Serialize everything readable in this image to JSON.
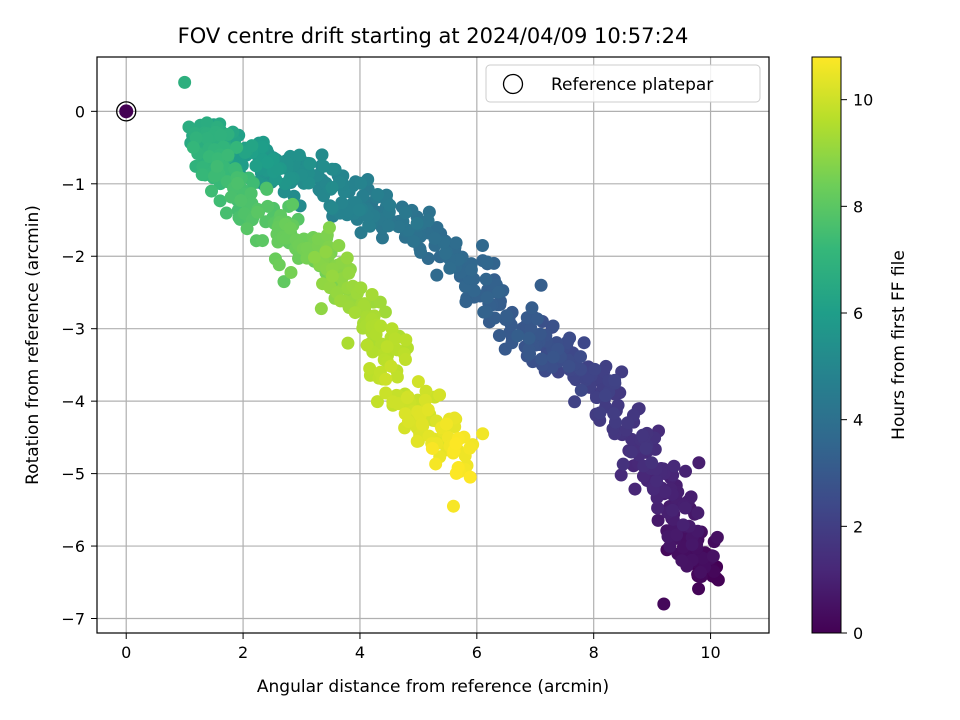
{
  "chart_data": {
    "type": "scatter",
    "title": "FOV centre drift starting at 2024/04/09 10:57:24",
    "xlabel": "Angular distance from reference (arcmin)",
    "ylabel": "Rotation from reference (arcmin)",
    "xlim": [
      -0.5,
      11.0
    ],
    "ylim": [
      -7.2,
      0.75
    ],
    "xticks": [
      0,
      2,
      4,
      6,
      8,
      10
    ],
    "yticks": [
      0,
      -1,
      -2,
      -3,
      -4,
      -5,
      -6,
      -7
    ],
    "grid": true,
    "colormap": "viridis",
    "colorbar": {
      "label": "Hours from first FF file",
      "range": [
        0,
        10.8
      ],
      "ticks": [
        0,
        2,
        4,
        6,
        8,
        10
      ]
    },
    "legend": {
      "placement": "upper-right",
      "entries": [
        {
          "label": "Reference platepar",
          "marker": "open-circle"
        }
      ]
    },
    "reference_point": {
      "x": 0,
      "y": 0,
      "hours": 0
    },
    "trajectory_keypoints": [
      {
        "hours": 0.0,
        "x": 9.9,
        "y": -6.4
      },
      {
        "hours": 0.6,
        "x": 9.6,
        "y": -5.9
      },
      {
        "hours": 1.2,
        "x": 9.1,
        "y": -5.0
      },
      {
        "hours": 1.8,
        "x": 8.5,
        "y": -4.2
      },
      {
        "hours": 2.4,
        "x": 7.6,
        "y": -3.4
      },
      {
        "hours": 3.0,
        "x": 6.8,
        "y": -3.1
      },
      {
        "hours": 3.5,
        "x": 5.9,
        "y": -2.3
      },
      {
        "hours": 4.0,
        "x": 5.0,
        "y": -1.7
      },
      {
        "hours": 4.6,
        "x": 4.1,
        "y": -1.3
      },
      {
        "hours": 5.2,
        "x": 3.1,
        "y": -0.9
      },
      {
        "hours": 6.0,
        "x": 2.0,
        "y": -0.6
      },
      {
        "hours": 6.6,
        "x": 1.4,
        "y": -0.3
      },
      {
        "hours": 7.1,
        "x": 1.5,
        "y": -0.7
      },
      {
        "hours": 7.6,
        "x": 2.0,
        "y": -1.2
      },
      {
        "hours": 8.2,
        "x": 2.8,
        "y": -1.7
      },
      {
        "hours": 8.8,
        "x": 3.5,
        "y": -2.1
      },
      {
        "hours": 9.4,
        "x": 4.2,
        "y": -2.9
      },
      {
        "hours": 10.0,
        "x": 4.9,
        "y": -4.0
      },
      {
        "hours": 10.8,
        "x": 5.8,
        "y": -4.8
      }
    ],
    "notable_points": [
      {
        "x": 1.0,
        "y": 0.4,
        "hours": 6.8
      },
      {
        "x": 9.2,
        "y": -6.8,
        "hours": 0.2
      },
      {
        "x": 5.6,
        "y": -5.45,
        "hours": 10.7
      },
      {
        "x": 6.1,
        "y": -4.45,
        "hours": 10.6
      },
      {
        "x": 7.1,
        "y": -2.4,
        "hours": 3.2
      },
      {
        "x": 2.7,
        "y": -2.35,
        "hours": 8.1
      },
      {
        "x": 5.0,
        "y": -4.55,
        "hours": 10.2
      },
      {
        "x": 9.8,
        "y": -4.85,
        "hours": 0.9
      }
    ]
  }
}
